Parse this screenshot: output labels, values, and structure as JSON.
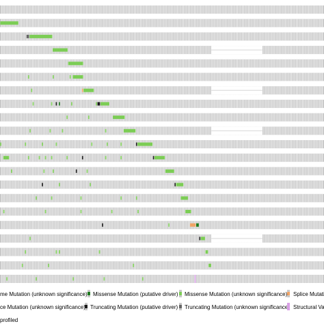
{
  "colors": {
    "no_alteration": "#c8c8c8",
    "sample_border": "#a8a8a8",
    "missense_driver": "#1f7a1f",
    "missense_unknown": "#7ccd55",
    "splice_unknown": "#f0a466",
    "truncating_driver": "#1a1a1a",
    "truncating_unknown": "#666666",
    "structural_variant": "#d9a0e6"
  },
  "oncoprint": {
    "columns": 210,
    "not_profiled_gaps": [
      {
        "row": 3,
        "start": 137,
        "end": 170
      },
      {
        "row": 6,
        "start": 137,
        "end": 170
      },
      {
        "row": 9,
        "start": 137,
        "end": 170
      },
      {
        "row": 17,
        "start": 137,
        "end": 170
      }
    ],
    "tracks": [
      {
        "alterations": []
      },
      {
        "alterations": [
          {
            "col": 0,
            "span": 12,
            "type": "missense_unknown"
          }
        ]
      },
      {
        "alterations": [
          {
            "col": 17,
            "span": 2,
            "type": "truncating_unknown"
          },
          {
            "col": 19,
            "span": 15,
            "type": "missense_unknown"
          }
        ]
      },
      {
        "alterations": [
          {
            "col": 34,
            "span": 10,
            "type": "missense_unknown"
          }
        ]
      },
      {
        "alterations": [
          {
            "col": 44,
            "span": 10,
            "type": "missense_unknown"
          }
        ]
      },
      {
        "alterations": [
          {
            "col": 18,
            "span": 1,
            "type": "missense_unknown"
          },
          {
            "col": 34,
            "span": 1,
            "type": "missense_unknown"
          },
          {
            "col": 45,
            "span": 1,
            "type": "missense_unknown"
          },
          {
            "col": 47,
            "span": 7,
            "type": "missense_unknown"
          }
        ]
      },
      {
        "alterations": [
          {
            "col": 20,
            "span": 1,
            "type": "missense_unknown"
          },
          {
            "col": 53,
            "span": 1,
            "type": "splice_unknown"
          },
          {
            "col": 54,
            "span": 7,
            "type": "missense_unknown"
          }
        ]
      },
      {
        "alterations": [
          {
            "col": 21,
            "span": 1,
            "type": "missense_unknown"
          },
          {
            "col": 33,
            "span": 1,
            "type": "missense_unknown"
          },
          {
            "col": 36,
            "span": 1,
            "type": "truncating_driver"
          },
          {
            "col": 38,
            "span": 1,
            "type": "missense_driver"
          },
          {
            "col": 46,
            "span": 1,
            "type": "missense_unknown"
          },
          {
            "col": 62,
            "span": 1,
            "type": "missense_unknown"
          },
          {
            "col": 63,
            "span": 2,
            "type": "truncating_driver"
          },
          {
            "col": 65,
            "span": 6,
            "type": "missense_unknown"
          }
        ]
      },
      {
        "alterations": [
          {
            "col": 43,
            "span": 1,
            "type": "missense_unknown"
          },
          {
            "col": 57,
            "span": 1,
            "type": "missense_unknown"
          },
          {
            "col": 73,
            "span": 8,
            "type": "missense_unknown"
          }
        ]
      },
      {
        "alterations": [
          {
            "col": 19,
            "span": 1,
            "type": "missense_unknown"
          },
          {
            "col": 32,
            "span": 1,
            "type": "missense_unknown"
          },
          {
            "col": 40,
            "span": 1,
            "type": "missense_unknown"
          },
          {
            "col": 68,
            "span": 1,
            "type": "missense_unknown"
          },
          {
            "col": 80,
            "span": 8,
            "type": "missense_unknown"
          }
        ]
      },
      {
        "alterations": [
          {
            "col": 0,
            "span": 1,
            "type": "missense_unknown"
          },
          {
            "col": 16,
            "span": 1,
            "type": "missense_unknown"
          },
          {
            "col": 27,
            "span": 1,
            "type": "missense_unknown"
          },
          {
            "col": 36,
            "span": 1,
            "type": "missense_unknown"
          },
          {
            "col": 59,
            "span": 1,
            "type": "missense_unknown"
          },
          {
            "col": 69,
            "span": 1,
            "type": "missense_unknown"
          },
          {
            "col": 78,
            "span": 1,
            "type": "missense_unknown"
          },
          {
            "col": 88,
            "span": 1,
            "type": "truncating_driver"
          },
          {
            "col": 89,
            "span": 10,
            "type": "missense_unknown"
          }
        ]
      },
      {
        "alterations": [
          {
            "col": 2,
            "span": 4,
            "type": "missense_unknown"
          },
          {
            "col": 18,
            "span": 1,
            "type": "missense_unknown"
          },
          {
            "col": 25,
            "span": 1,
            "type": "missense_unknown"
          },
          {
            "col": 29,
            "span": 1,
            "type": "missense_unknown"
          },
          {
            "col": 33,
            "span": 1,
            "type": "missense_unknown"
          },
          {
            "col": 43,
            "span": 1,
            "type": "missense_unknown"
          },
          {
            "col": 53,
            "span": 1,
            "type": "truncating_driver"
          },
          {
            "col": 68,
            "span": 1,
            "type": "missense_unknown"
          },
          {
            "col": 78,
            "span": 1,
            "type": "missense_unknown"
          },
          {
            "col": 99,
            "span": 1,
            "type": "truncating_driver"
          },
          {
            "col": 100,
            "span": 7,
            "type": "missense_unknown"
          }
        ]
      },
      {
        "alterations": [
          {
            "col": 7,
            "span": 1,
            "type": "missense_unknown"
          },
          {
            "col": 28,
            "span": 1,
            "type": "missense_unknown"
          },
          {
            "col": 34,
            "span": 1,
            "type": "missense_unknown"
          },
          {
            "col": 49,
            "span": 1,
            "type": "truncating_driver"
          },
          {
            "col": 56,
            "span": 1,
            "type": "missense_unknown"
          },
          {
            "col": 107,
            "span": 6,
            "type": "missense_unknown"
          }
        ]
      },
      {
        "alterations": [
          {
            "col": 27,
            "span": 1,
            "type": "truncating_driver"
          },
          {
            "col": 38,
            "span": 1,
            "type": "missense_unknown"
          },
          {
            "col": 58,
            "span": 1,
            "type": "missense_unknown"
          },
          {
            "col": 113,
            "span": 1,
            "type": "truncating_driver"
          },
          {
            "col": 114,
            "span": 5,
            "type": "missense_unknown"
          }
        ]
      },
      {
        "alterations": [
          {
            "col": 23,
            "span": 1,
            "type": "missense_unknown"
          },
          {
            "col": 33,
            "span": 1,
            "type": "missense_unknown"
          },
          {
            "col": 52,
            "span": 1,
            "type": "missense_unknown"
          },
          {
            "col": 78,
            "span": 1,
            "type": "missense_unknown"
          },
          {
            "col": 88,
            "span": 1,
            "type": "missense_unknown"
          },
          {
            "col": 117,
            "span": 5,
            "type": "missense_unknown"
          }
        ]
      },
      {
        "alterations": [
          {
            "col": 2,
            "span": 1,
            "type": "missense_unknown"
          },
          {
            "col": 29,
            "span": 1,
            "type": "missense_unknown"
          },
          {
            "col": 52,
            "span": 1,
            "type": "missense_unknown"
          },
          {
            "col": 72,
            "span": 1,
            "type": "missense_unknown"
          },
          {
            "col": 89,
            "span": 1,
            "type": "missense_unknown"
          },
          {
            "col": 120,
            "span": 4,
            "type": "missense_unknown"
          }
        ]
      },
      {
        "alterations": [
          {
            "col": 66,
            "span": 1,
            "type": "truncating_driver"
          },
          {
            "col": 109,
            "span": 1,
            "type": "missense_unknown"
          },
          {
            "col": 123,
            "span": 4,
            "type": "splice_unknown"
          },
          {
            "col": 127,
            "span": 2,
            "type": "missense_driver"
          }
        ]
      },
      {
        "alterations": [
          {
            "col": 19,
            "span": 1,
            "type": "missense_unknown"
          },
          {
            "col": 129,
            "span": 1,
            "type": "truncating_driver"
          },
          {
            "col": 130,
            "span": 3,
            "type": "missense_unknown"
          }
        ]
      },
      {
        "alterations": [
          {
            "col": 16,
            "span": 1,
            "type": "missense_unknown"
          },
          {
            "col": 36,
            "span": 1,
            "type": "missense_unknown"
          },
          {
            "col": 38,
            "span": 1,
            "type": "missense_unknown"
          },
          {
            "col": 64,
            "span": 1,
            "type": "missense_unknown"
          },
          {
            "col": 133,
            "span": 2,
            "type": "missense_unknown"
          }
        ]
      },
      {
        "alterations": [
          {
            "col": 14,
            "span": 1,
            "type": "missense_unknown"
          },
          {
            "col": 31,
            "span": 1,
            "type": "missense_unknown"
          },
          {
            "col": 86,
            "span": 1,
            "type": "missense_unknown"
          },
          {
            "col": 135,
            "span": 2,
            "type": "missense_unknown"
          }
        ]
      },
      {
        "alterations": [
          {
            "col": 4,
            "span": 1,
            "type": "missense_unknown"
          },
          {
            "col": 23,
            "span": 1,
            "type": "missense_unknown"
          },
          {
            "col": 47,
            "span": 1,
            "type": "missense_unknown"
          },
          {
            "col": 67,
            "span": 1,
            "type": "missense_unknown"
          },
          {
            "col": 92,
            "span": 1,
            "type": "missense_unknown"
          },
          {
            "col": 126,
            "span": 1,
            "type": "structural_variant"
          }
        ]
      }
    ]
  },
  "legend": {
    "row1": [
      {
        "swatch": "missense_unknown",
        "label": "me Mutation (unknown significance)"
      },
      {
        "swatch": "missense_driver",
        "label": "Missense Mutation (putative driver)"
      },
      {
        "swatch": "missense_unknown",
        "label": "Missense Mutation (unknown significance)"
      },
      {
        "swatch": "splice_unknown",
        "label": "Splice Mutation"
      }
    ],
    "row2": [
      {
        "swatch": "splice_unknown",
        "label": "ce Mutation (unknown significance)"
      },
      {
        "swatch": "truncating_driver",
        "label": "Truncating Mutation (putative driver)"
      },
      {
        "swatch": "truncating_unknown",
        "label": "Truncating Mutation (unknown significance)"
      },
      {
        "swatch": "structural_variant",
        "label": "Structural Var"
      }
    ],
    "row3": [
      {
        "swatch": "",
        "label": "profiled"
      }
    ]
  }
}
